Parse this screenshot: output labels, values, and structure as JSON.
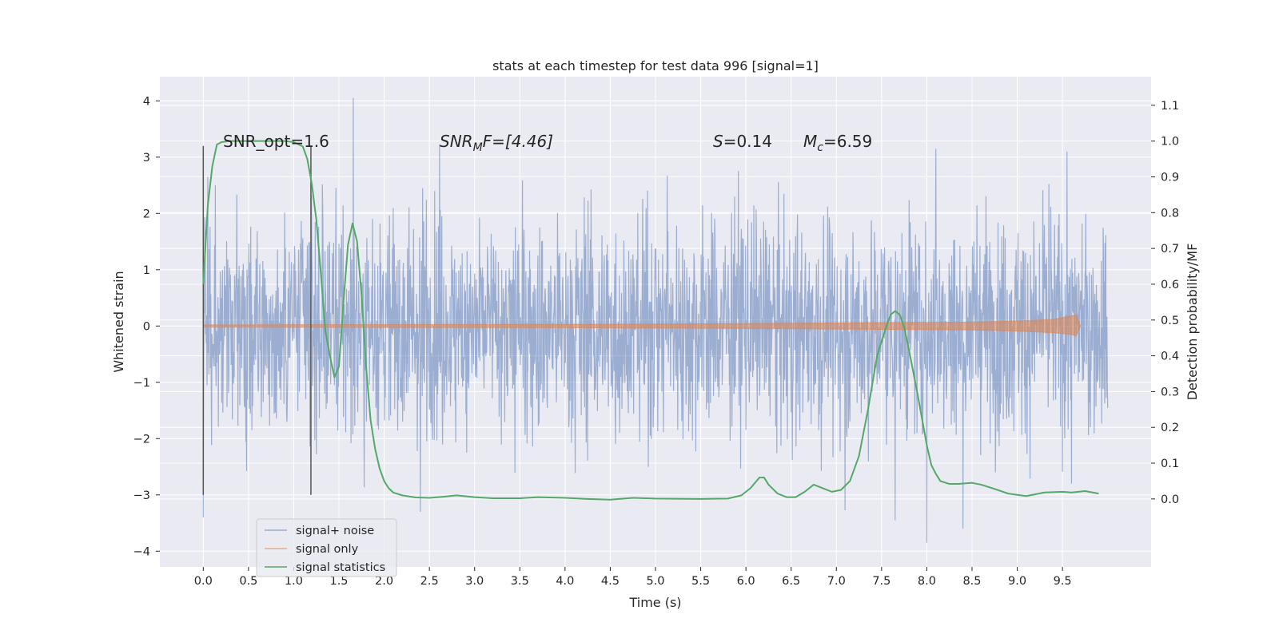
{
  "chart_data": {
    "type": "line",
    "title": "stats at each timestep for test data 996 [signal=1]",
    "xlabel": "Time (s)",
    "ylabel": "Whitened strain",
    "y2label": "Detection probability/MF",
    "xlim": [
      -0.48,
      10.48
    ],
    "ylim": [
      -4.28,
      4.43
    ],
    "y2lim": [
      -0.19,
      1.18
    ],
    "x_ticks": [
      0.0,
      0.5,
      1.0,
      1.5,
      2.0,
      2.5,
      3.0,
      3.5,
      4.0,
      4.5,
      5.0,
      5.5,
      6.0,
      6.5,
      7.0,
      7.5,
      8.0,
      8.5,
      9.0,
      9.5
    ],
    "x_tick_labels": [
      "0.0",
      "0.5",
      "1.0",
      "1.5",
      "2.0",
      "2.5",
      "3.0",
      "3.5",
      "4.0",
      "4.5",
      "5.0",
      "5.5",
      "6.0",
      "6.5",
      "7.0",
      "7.5",
      "8.0",
      "8.5",
      "9.0",
      "9.5"
    ],
    "y_ticks": [
      4,
      3,
      2,
      1,
      0,
      -1,
      -2,
      -3,
      -4
    ],
    "y_tick_labels": [
      "4",
      "3",
      "2",
      "1",
      "0",
      "−1",
      "−2",
      "−3",
      "−4"
    ],
    "y2_ticks": [
      1.1,
      1.0,
      0.9,
      0.8,
      0.7,
      0.6,
      0.5,
      0.4,
      0.3,
      0.2,
      0.1,
      0.0
    ],
    "y2_tick_labels": [
      "1.1",
      "1.0",
      "0.9",
      "0.8",
      "0.7",
      "0.6",
      "0.5",
      "0.4",
      "0.3",
      "0.2",
      "0.1",
      "0.0"
    ],
    "grid": true,
    "legend_position": "lower-left",
    "annotations": {
      "snr_opt": "SNR_opt=1.6",
      "snr_mf_prefix": "SNR",
      "snr_mf_sub": "M",
      "snr_mf_suffix": "F=[4.46]",
      "s_prefix": "S",
      "s_value": "=0.14",
      "mc_prefix": "M",
      "mc_sub": "c",
      "mc_value": "=6.59"
    },
    "vertical_markers": [
      {
        "x": 0.0,
        "y_range": [
          -3.0,
          3.2
        ]
      },
      {
        "x": 1.19,
        "y_range": [
          -3.0,
          3.2
        ]
      }
    ],
    "series": [
      {
        "name": "signal+ noise",
        "color": "#4c72b0",
        "opacity": 0.5,
        "axis": "left",
        "x_range": [
          0.0,
          10.0
        ],
        "values_range": [
          -3.85,
          4.05
        ],
        "notable_peaks": [
          [
            0.0,
            -3.4
          ],
          [
            1.66,
            4.05
          ],
          [
            2.4,
            -3.3
          ],
          [
            7.65,
            -3.45
          ],
          [
            8.0,
            -3.85
          ],
          [
            8.1,
            3.15
          ],
          [
            8.4,
            -3.6
          ],
          [
            9.55,
            3.1
          ],
          [
            9.6,
            -2.8
          ]
        ]
      },
      {
        "name": "signal only",
        "color": "#dd8452",
        "opacity": 0.6,
        "axis": "left",
        "x": [
          0.0,
          4.0,
          5.5,
          6.5,
          7.5,
          8.5,
          9.0,
          9.4,
          9.6,
          9.65,
          9.7
        ],
        "upper": [
          0.02,
          0.03,
          0.04,
          0.05,
          0.06,
          0.07,
          0.09,
          0.12,
          0.18,
          0.2,
          0.0
        ],
        "lower": [
          -0.02,
          -0.03,
          -0.04,
          -0.05,
          -0.06,
          -0.07,
          -0.09,
          -0.12,
          -0.15,
          -0.18,
          0.0
        ]
      },
      {
        "name": "signal statistics",
        "color": "#55a868",
        "axis": "right",
        "x": [
          0.0,
          0.05,
          0.1,
          0.15,
          0.2,
          0.3,
          0.45,
          0.7,
          0.9,
          1.0,
          1.1,
          1.15,
          1.2,
          1.25,
          1.3,
          1.35,
          1.4,
          1.45,
          1.5,
          1.55,
          1.6,
          1.65,
          1.7,
          1.75,
          1.8,
          1.85,
          1.9,
          1.95,
          2.0,
          2.05,
          2.1,
          2.2,
          2.35,
          2.5,
          2.65,
          2.8,
          3.0,
          3.2,
          3.5,
          3.7,
          4.0,
          4.25,
          4.5,
          4.75,
          5.0,
          5.5,
          5.8,
          5.95,
          6.05,
          6.15,
          6.2,
          6.25,
          6.35,
          6.45,
          6.55,
          6.65,
          6.75,
          6.85,
          6.95,
          7.05,
          7.15,
          7.25,
          7.35,
          7.45,
          7.55,
          7.6,
          7.65,
          7.7,
          7.75,
          7.8,
          7.9,
          8.0,
          8.05,
          8.1,
          8.15,
          8.25,
          8.35,
          8.5,
          8.6,
          8.75,
          8.9,
          9.1,
          9.3,
          9.5,
          9.6,
          9.75,
          9.9
        ],
        "values": [
          0.6,
          0.82,
          0.93,
          0.99,
          0.997,
          1.0,
          1.0,
          1.0,
          1.0,
          0.997,
          0.985,
          0.95,
          0.88,
          0.78,
          0.63,
          0.47,
          0.4,
          0.34,
          0.37,
          0.55,
          0.71,
          0.77,
          0.72,
          0.57,
          0.37,
          0.22,
          0.14,
          0.085,
          0.05,
          0.03,
          0.018,
          0.01,
          0.004,
          0.003,
          0.006,
          0.01,
          0.005,
          0.002,
          0.002,
          0.005,
          0.003,
          0.0,
          -0.002,
          0.003,
          0.001,
          0.0,
          0.001,
          0.01,
          0.03,
          0.06,
          0.06,
          0.04,
          0.015,
          0.005,
          0.005,
          0.02,
          0.04,
          0.03,
          0.02,
          0.025,
          0.05,
          0.12,
          0.25,
          0.4,
          0.48,
          0.515,
          0.525,
          0.515,
          0.48,
          0.42,
          0.29,
          0.15,
          0.095,
          0.07,
          0.05,
          0.042,
          0.042,
          0.045,
          0.04,
          0.028,
          0.015,
          0.008,
          0.018,
          0.02,
          0.018,
          0.022,
          0.015
        ]
      }
    ]
  }
}
